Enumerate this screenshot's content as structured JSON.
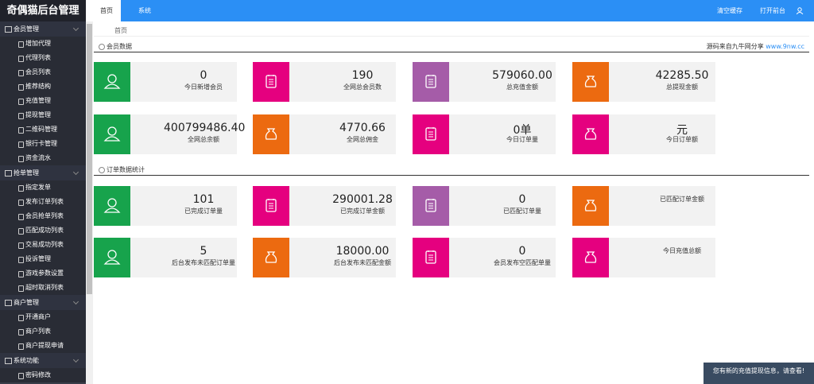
{
  "header": {
    "logo": "奇偶猫后台管理",
    "tabs": [
      "首页",
      "系统"
    ],
    "actions": [
      "清空缓存",
      "打开前台"
    ]
  },
  "sidebar": [
    {
      "title": "会员管理",
      "items": [
        "增加代理",
        "代理列表",
        "会员列表",
        "推荐结构",
        "充值管理",
        "提现管理",
        "二维码管理",
        "银行卡管理",
        "资金流水"
      ]
    },
    {
      "title": "抢单管理",
      "items": [
        "指定发单",
        "发布订单列表",
        "会员抢单列表",
        "匹配成功列表",
        "交易成功列表",
        "投诉管理",
        "游戏参数设置",
        "超时取消列表"
      ]
    },
    {
      "title": "商户管理",
      "items": [
        "开通商户",
        "商户列表",
        "商户提现申请"
      ]
    },
    {
      "title": "系统功能",
      "items": [
        "密码修改"
      ]
    }
  ],
  "breadcrumb": "首页",
  "sections": [
    {
      "title": "会员数据",
      "note": "源码来自九牛网分享",
      "link": "www.9nw.cc",
      "cards": [
        {
          "value": "0",
          "label": "今日新增会员",
          "color": "#17a34c"
        },
        {
          "value": "190",
          "label": "全网总会员数",
          "color": "#e5007f"
        },
        {
          "value": "579060.00",
          "label": "总充值金额",
          "color": "#a55ca8"
        },
        {
          "value": "42285.50",
          "label": "总提现金额",
          "color": "#ec6a10"
        },
        {
          "value": "400799486.40",
          "label": "全网总余额",
          "color": "#17a34c"
        },
        {
          "value": "4770.66",
          "label": "全网总佣金",
          "color": "#ec6a10"
        },
        {
          "value": "0单",
          "label": "今日订单量",
          "color": "#e5007f"
        },
        {
          "value": "元",
          "label": "今日订单额",
          "color": "#e5007f"
        }
      ]
    },
    {
      "title": "订单数据统计",
      "cards": [
        {
          "value": "101",
          "label": "已完成订单量",
          "color": "#17a34c"
        },
        {
          "value": "290001.28",
          "label": "已完成订单金额",
          "color": "#e5007f"
        },
        {
          "value": "0",
          "label": "已匹配订单量",
          "color": "#a55ca8"
        },
        {
          "label": "已匹配订单金额",
          "color": "#ec6a10"
        },
        {
          "value": "5",
          "label": "后台发布未匹配订单量",
          "color": "#17a34c"
        },
        {
          "value": "18000.00",
          "label": "后台发布未匹配金额",
          "color": "#ec6a10"
        },
        {
          "value": "0",
          "label": "会员发布空匹配单量",
          "color": "#e5007f"
        },
        {
          "label": "今日充值总额",
          "color": "#e5007f"
        }
      ]
    }
  ],
  "notice": "您有新的充值提现信息，请查看!"
}
